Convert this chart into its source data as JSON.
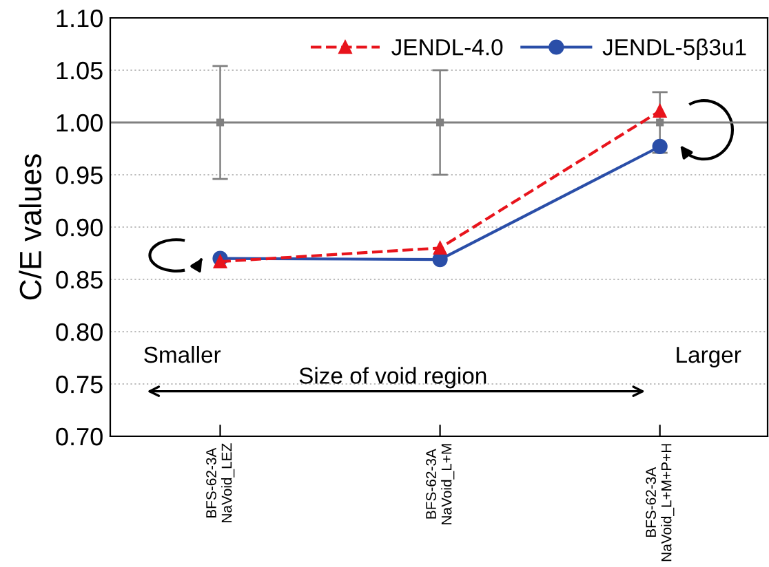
{
  "chart_data": {
    "type": "line",
    "ylabel": "C/E values",
    "categories": [
      "BFS-62-3A\nNaVoid_LEZ",
      "BFS-62-3A\nNaVoid_L+M",
      "BFS-62-3A\nNaVoid_L+M+P+H"
    ],
    "series": [
      {
        "type": "scatter",
        "color": "#808080",
        "marker": "square",
        "values": [
          1.0,
          1.0,
          1.0
        ],
        "errors": [
          0.054,
          0.05,
          0.029
        ]
      },
      {
        "name": "JENDL-4.0",
        "color": "#e8141c",
        "marker": "triangle",
        "line_style": "dashed",
        "values": [
          0.867,
          0.88,
          1.011
        ]
      },
      {
        "name": "JENDL-5β3u1",
        "color": "#2a4ea8",
        "marker": "circle",
        "line_style": "solid",
        "values": [
          0.87,
          0.869,
          0.977
        ]
      }
    ],
    "ylim": [
      0.7,
      1.1
    ],
    "yticks": [
      {
        "value": 0.7,
        "label": "0.70"
      },
      {
        "value": 0.75,
        "label": "0.75"
      },
      {
        "value": 0.8,
        "label": "0.80"
      },
      {
        "value": 0.85,
        "label": "0.85"
      },
      {
        "value": 0.9,
        "label": "0.90"
      },
      {
        "value": 0.95,
        "label": "0.95"
      },
      {
        "value": 1.0,
        "label": "1.00"
      },
      {
        "value": 1.05,
        "label": "1.05"
      },
      {
        "value": 1.1,
        "label": "1.10"
      }
    ],
    "ref_lines": [
      {
        "axis": "y",
        "value": 1.0,
        "color": "#808080"
      }
    ],
    "grid": "y",
    "legend": "top right",
    "annotations": [
      "Smaller",
      "Larger",
      "Size of void region"
    ]
  }
}
